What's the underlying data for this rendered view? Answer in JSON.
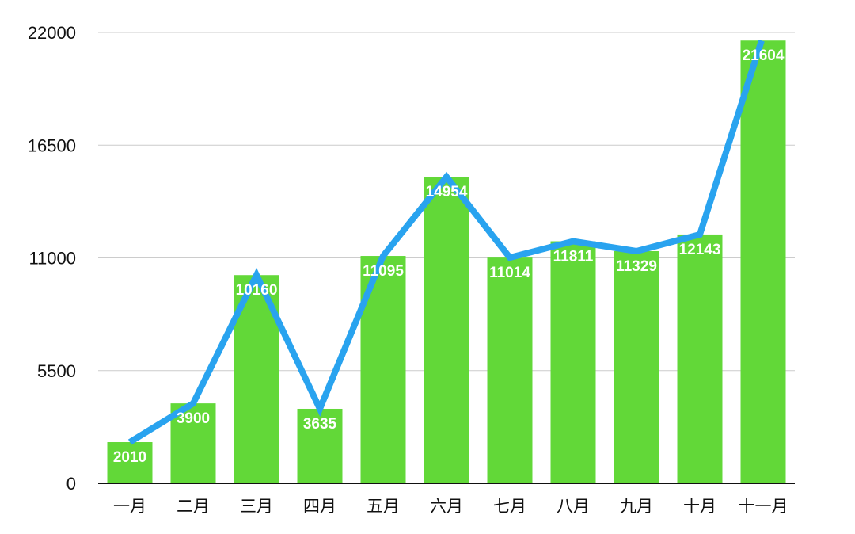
{
  "chart_data": {
    "type": "bar",
    "title": "",
    "xlabel": "",
    "ylabel": "",
    "categories": [
      "一月",
      "二月",
      "三月",
      "四月",
      "五月",
      "六月",
      "七月",
      "八月",
      "九月",
      "十月",
      "十一月"
    ],
    "values": [
      2010,
      3900,
      10160,
      3635,
      11095,
      14954,
      11014,
      11811,
      11329,
      12143,
      21604
    ],
    "overlay_line": "same-values",
    "ylim": [
      0,
      22000
    ],
    "yticks": [
      "0",
      "5500",
      "11000",
      "16500",
      "22000"
    ],
    "grid": true,
    "legend": "none",
    "colors": {
      "bar": "#62d838",
      "line": "#29a3ef",
      "grid": "#cccccc",
      "axis": "#111111",
      "data_label": "#ffffff"
    }
  }
}
